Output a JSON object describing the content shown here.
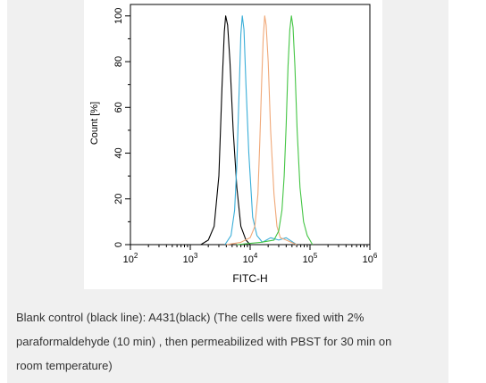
{
  "chart_data": {
    "type": "line",
    "title": "",
    "xlabel": "FITC-H",
    "ylabel": "Count  [%]",
    "xscale": "log",
    "xlim": [
      100,
      1000000
    ],
    "ylim": [
      0,
      105
    ],
    "xticks": [
      {
        "value": 100,
        "base": "10",
        "exp": "2"
      },
      {
        "value": 1000,
        "base": "10",
        "exp": "3"
      },
      {
        "value": 10000,
        "base": "10",
        "exp": "4"
      },
      {
        "value": 100000,
        "base": "10",
        "exp": "5"
      },
      {
        "value": 1000000,
        "base": "10",
        "exp": "6"
      }
    ],
    "yticks": [
      {
        "value": 0,
        "label": "0"
      },
      {
        "value": 20,
        "label": "20"
      },
      {
        "value": 40,
        "label": "40"
      },
      {
        "value": 60,
        "label": "60"
      },
      {
        "value": 80,
        "label": "80"
      },
      {
        "value": 100,
        "label": "100"
      }
    ],
    "grid": false,
    "legend": "none",
    "series": [
      {
        "color": "#000000",
        "points": [
          [
            1500,
            0
          ],
          [
            2000,
            2
          ],
          [
            2500,
            8
          ],
          [
            3000,
            30
          ],
          [
            3400,
            70
          ],
          [
            3700,
            93
          ],
          [
            3900,
            100
          ],
          [
            4200,
            96
          ],
          [
            4600,
            80
          ],
          [
            5200,
            50
          ],
          [
            6000,
            25
          ],
          [
            7000,
            8
          ],
          [
            8500,
            2
          ],
          [
            10000,
            0
          ]
        ]
      },
      {
        "color": "#3aaed8",
        "points": [
          [
            3800,
            0
          ],
          [
            4800,
            4
          ],
          [
            5500,
            15
          ],
          [
            6000,
            35
          ],
          [
            6600,
            70
          ],
          [
            7000,
            92
          ],
          [
            7400,
            100
          ],
          [
            7900,
            94
          ],
          [
            8500,
            70
          ],
          [
            9500,
            40
          ],
          [
            11000,
            12
          ],
          [
            13000,
            4
          ],
          [
            16000,
            1
          ],
          [
            22000,
            3
          ],
          [
            30000,
            2
          ],
          [
            40000,
            3
          ],
          [
            60000,
            0
          ]
        ]
      },
      {
        "color": "#f0a878",
        "points": [
          [
            4000,
            0
          ],
          [
            7000,
            1
          ],
          [
            10000,
            3
          ],
          [
            12000,
            8
          ],
          [
            13500,
            22
          ],
          [
            14500,
            45
          ],
          [
            15500,
            70
          ],
          [
            16500,
            90
          ],
          [
            17500,
            100
          ],
          [
            18500,
            96
          ],
          [
            20000,
            80
          ],
          [
            22000,
            50
          ],
          [
            25000,
            22
          ],
          [
            28000,
            8
          ],
          [
            32000,
            3
          ],
          [
            40000,
            2
          ],
          [
            60000,
            0
          ]
        ]
      },
      {
        "color": "#44c544",
        "points": [
          [
            6000,
            0
          ],
          [
            15000,
            1
          ],
          [
            25000,
            2
          ],
          [
            30000,
            6
          ],
          [
            34000,
            15
          ],
          [
            37000,
            30
          ],
          [
            40000,
            52
          ],
          [
            43000,
            78
          ],
          [
            46000,
            94
          ],
          [
            49000,
            100
          ],
          [
            52000,
            95
          ],
          [
            56000,
            78
          ],
          [
            61000,
            50
          ],
          [
            68000,
            25
          ],
          [
            78000,
            10
          ],
          [
            90000,
            4
          ],
          [
            110000,
            0
          ]
        ]
      }
    ]
  },
  "caption": {
    "line1": "Blank control (black line): A431(black) (The cells were fixed with 2%",
    "line2": "paraformaldehyde (10 min) , then permeabilized with PBST for 30 min on",
    "line3": "room temperature)"
  }
}
